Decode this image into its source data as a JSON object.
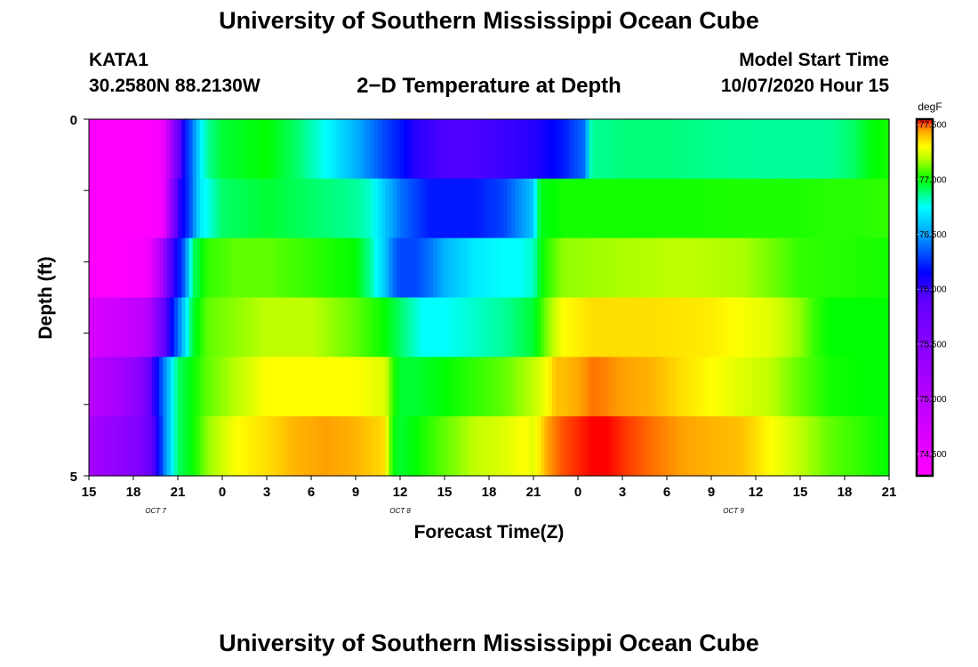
{
  "header": {
    "title": "University of Southern Mississippi Ocean Cube",
    "station_id": "KATA1",
    "station_coords": "30.2580N 88.2130W",
    "plot_title": "2−D Temperature at Depth",
    "model_start_label": "Model Start Time",
    "model_start_value": "10/07/2020 Hour 15"
  },
  "footer": {
    "title": "University of Southern Mississippi Ocean Cube"
  },
  "chart_data": {
    "type": "heatmap",
    "title": "2−D Temperature at Depth",
    "xlabel": "Forecast Time(Z)",
    "ylabel": "Depth (ft)",
    "x_tick_labels": [
      "15",
      "18",
      "21",
      "0",
      "3",
      "6",
      "9",
      "12",
      "15",
      "18",
      "21",
      "0",
      "3",
      "6",
      "9",
      "12",
      "15",
      "18",
      "21"
    ],
    "x_hours": [
      0,
      3,
      6,
      9,
      12,
      15,
      18,
      21,
      24,
      27,
      30,
      33,
      36,
      39,
      42,
      45,
      48,
      51,
      54
    ],
    "date_labels": [
      {
        "label": "OCT 7",
        "hour": 4.5
      },
      {
        "label": "OCT 8",
        "hour": 21
      },
      {
        "label": "OCT 9",
        "hour": 43.5
      }
    ],
    "xlim": [
      0,
      54
    ],
    "y_tick_labels": [
      "0",
      "5"
    ],
    "ylim": [
      0,
      5
    ],
    "depth_rows": [
      0,
      1,
      2,
      3,
      4,
      5
    ],
    "colorbar": {
      "unit": "degF",
      "vmin": 74.3,
      "vmax": 77.55,
      "ticks": [
        "74.500",
        "75.000",
        "75.500",
        "76.000",
        "76.500",
        "77.000",
        "77.500"
      ],
      "tick_values": [
        74.5,
        75.0,
        75.5,
        76.0,
        76.5,
        77.0,
        77.5
      ],
      "color_stops": [
        {
          "v": 74.3,
          "c": "#ff00ff"
        },
        {
          "v": 75.9,
          "c": "#6000ff"
        },
        {
          "v": 76.15,
          "c": "#0000ff"
        },
        {
          "v": 76.5,
          "c": "#00a0ff"
        },
        {
          "v": 76.75,
          "c": "#00ffff"
        },
        {
          "v": 77.0,
          "c": "#00ff00"
        },
        {
          "v": 77.2,
          "c": "#c0ff00"
        },
        {
          "v": 77.3,
          "c": "#ffff00"
        },
        {
          "v": 77.45,
          "c": "#ffa000"
        },
        {
          "v": 77.55,
          "c": "#ff0000"
        }
      ]
    },
    "series": [
      {
        "depth": 0,
        "hours": [
          0,
          2,
          4,
          5,
          6,
          6.5,
          7,
          7.5,
          8,
          9,
          12,
          14,
          16,
          18,
          20,
          21,
          22,
          24,
          26,
          30,
          32,
          33.5,
          33.8,
          34,
          36,
          39,
          42,
          45,
          48,
          50,
          51.5,
          53,
          54
        ],
        "temps": [
          74.3,
          74.3,
          74.3,
          74.4,
          75.8,
          76.2,
          76.4,
          76.7,
          76.85,
          76.95,
          77.0,
          76.9,
          76.75,
          76.55,
          76.3,
          76.2,
          76.05,
          75.95,
          75.95,
          76.05,
          76.2,
          76.4,
          76.8,
          76.85,
          76.88,
          76.88,
          76.86,
          76.85,
          76.85,
          76.85,
          76.9,
          77.0,
          77.02
        ]
      },
      {
        "depth": 1,
        "hours": [
          0,
          2,
          4,
          5,
          5.8,
          6.2,
          6.8,
          7.5,
          9,
          12,
          15,
          18,
          19,
          20,
          21,
          22,
          23,
          24,
          26,
          28,
          29,
          30,
          30.3,
          30.6,
          32,
          36,
          40,
          44,
          48,
          50,
          52,
          54
        ],
        "temps": [
          74.3,
          74.3,
          74.3,
          74.4,
          75.8,
          76.1,
          76.3,
          76.7,
          76.9,
          76.95,
          76.9,
          76.85,
          76.8,
          76.6,
          76.4,
          76.3,
          76.2,
          76.2,
          76.2,
          76.3,
          76.45,
          76.6,
          76.9,
          76.98,
          77.02,
          77.02,
          77.02,
          77.03,
          77.03,
          77.04,
          77.04,
          77.05
        ]
      },
      {
        "depth": 2,
        "hours": [
          0,
          2,
          4,
          5,
          5.3,
          6,
          6.5,
          7,
          8,
          10,
          12,
          15,
          18,
          19,
          20,
          20.5,
          21,
          22,
          23,
          24,
          26,
          28,
          29,
          30,
          30.5,
          32,
          36,
          40,
          44,
          46,
          48,
          50,
          52,
          54
        ],
        "temps": [
          74.3,
          74.3,
          74.4,
          75.2,
          75.8,
          76.15,
          76.4,
          76.9,
          77.05,
          77.1,
          77.1,
          77.05,
          77.0,
          76.85,
          76.6,
          76.4,
          76.3,
          76.3,
          76.4,
          76.55,
          76.7,
          76.75,
          76.75,
          76.8,
          77.0,
          77.15,
          77.18,
          77.2,
          77.18,
          77.12,
          77.05,
          77.04,
          77.03,
          77.02
        ]
      },
      {
        "depth": 3,
        "hours": [
          0,
          2,
          4,
          4.8,
          5.5,
          6.2,
          7,
          8,
          10,
          12,
          15,
          18,
          20,
          21,
          22,
          22.5,
          24,
          26,
          28,
          30,
          31,
          32,
          34,
          38,
          42,
          46,
          48,
          49,
          50,
          52,
          54
        ],
        "temps": [
          74.7,
          74.8,
          75.0,
          75.7,
          76.1,
          76.5,
          76.95,
          77.1,
          77.15,
          77.2,
          77.2,
          77.1,
          77.0,
          76.9,
          76.8,
          76.75,
          76.75,
          76.8,
          76.85,
          76.95,
          77.15,
          77.3,
          77.35,
          77.35,
          77.33,
          77.25,
          77.15,
          77.05,
          77.0,
          77.0,
          77.0
        ]
      },
      {
        "depth": 4,
        "hours": [
          0,
          2,
          3.5,
          4.5,
          5.2,
          6,
          7,
          8,
          10,
          12,
          15,
          18,
          20,
          20.5,
          21,
          22,
          24,
          26,
          28,
          30,
          31,
          31.5,
          32,
          34,
          36,
          38,
          40,
          42,
          44,
          46,
          48,
          50,
          52,
          54
        ],
        "temps": [
          75.0,
          75.2,
          75.5,
          76.1,
          76.5,
          76.9,
          77.0,
          77.1,
          77.2,
          77.3,
          77.3,
          77.3,
          77.25,
          77.05,
          76.95,
          76.95,
          77.0,
          77.05,
          77.1,
          77.2,
          77.3,
          77.4,
          77.4,
          77.48,
          77.45,
          77.42,
          77.35,
          77.3,
          77.25,
          77.2,
          77.1,
          77.02,
          77.0,
          77.0
        ]
      },
      {
        "depth": 5,
        "hours": [
          0,
          2,
          3.5,
          4.5,
          5.2,
          6,
          7,
          8,
          10,
          12,
          14,
          16,
          18,
          20,
          20.5,
          21,
          22,
          24,
          26,
          28,
          29.5,
          30,
          31,
          32,
          34,
          35,
          36,
          38,
          40,
          42,
          44,
          46,
          48,
          50,
          52,
          54
        ],
        "temps": [
          75.2,
          75.4,
          75.6,
          76.0,
          76.5,
          76.9,
          77.0,
          77.15,
          77.3,
          77.35,
          77.42,
          77.45,
          77.42,
          77.35,
          77.0,
          76.95,
          77.0,
          77.1,
          77.2,
          77.25,
          77.3,
          77.25,
          77.45,
          77.5,
          77.55,
          77.55,
          77.52,
          77.48,
          77.45,
          77.42,
          77.4,
          77.3,
          77.2,
          77.1,
          77.05,
          77.0
        ]
      }
    ]
  }
}
